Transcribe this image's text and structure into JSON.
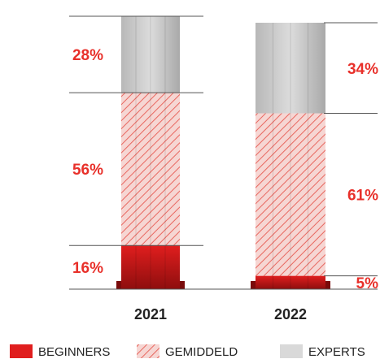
{
  "chart_data": {
    "type": "bar",
    "stacked": true,
    "categories": [
      "2021",
      "2022"
    ],
    "series": [
      {
        "name": "BEGINNERS",
        "values": [
          16,
          5
        ],
        "labels": [
          "16%",
          "5%"
        ],
        "color": "#e01e1e",
        "pattern": "solid"
      },
      {
        "name": "GEMIDDELD",
        "values": [
          56,
          61
        ],
        "labels": [
          "56%",
          "61%"
        ],
        "color": "#e8302a",
        "pattern": "hatched"
      },
      {
        "name": "EXPERTS",
        "values": [
          28,
          34
        ],
        "labels": [
          "28%",
          "34%"
        ],
        "color": "#d9d9d9",
        "pattern": "solid"
      }
    ],
    "legend_position": "bottom",
    "grid": false,
    "label_color": "#e8302a"
  }
}
